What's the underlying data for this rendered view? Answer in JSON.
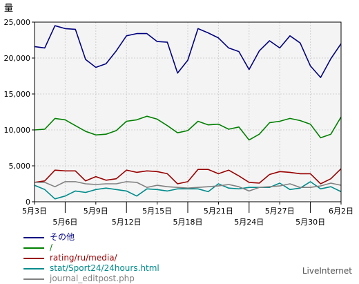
{
  "chart_data": {
    "type": "line",
    "ylabel": "量",
    "ylim": [
      0,
      25000
    ],
    "yticks": [
      0,
      5000,
      10000,
      15000,
      20000,
      25000
    ],
    "ytick_labels": [
      "0",
      "5,000",
      "10,000",
      "15,000",
      "20,000",
      "25,000"
    ],
    "x_count": 31,
    "xticks": [
      {
        "index": 0,
        "label": "5月3日",
        "row": 0
      },
      {
        "index": 3,
        "label": "5月6日",
        "row": 1
      },
      {
        "index": 6,
        "label": "5月9日",
        "row": 0
      },
      {
        "index": 9,
        "label": "5月12日",
        "row": 1
      },
      {
        "index": 12,
        "label": "5月15日",
        "row": 0
      },
      {
        "index": 15,
        "label": "5月18日",
        "row": 1
      },
      {
        "index": 18,
        "label": "5月21日",
        "row": 0
      },
      {
        "index": 21,
        "label": "5月24日",
        "row": 1
      },
      {
        "index": 24,
        "label": "5月27日",
        "row": 0
      },
      {
        "index": 27,
        "label": "5月30日",
        "row": 1
      },
      {
        "index": 30,
        "label": "6月2日",
        "row": 0
      }
    ],
    "grid": true,
    "legend_position": "bottom-left",
    "series": [
      {
        "name": "その他",
        "color": "#000080",
        "values": [
          21600,
          21400,
          24500,
          24100,
          24000,
          19800,
          18700,
          19200,
          21000,
          23100,
          23400,
          23400,
          22300,
          22200,
          17900,
          19700,
          24100,
          23500,
          22800,
          21400,
          20900,
          18400,
          21000,
          22400,
          21400,
          23100,
          22100,
          18900,
          17300,
          19900,
          22000
        ]
      },
      {
        "name": "/",
        "color": "#008000",
        "values": [
          10000,
          10100,
          11600,
          11400,
          10600,
          9800,
          9300,
          9400,
          9900,
          11200,
          11400,
          11900,
          11500,
          10600,
          9600,
          9900,
          11200,
          10700,
          10800,
          10100,
          10400,
          8600,
          9400,
          11000,
          11200,
          11600,
          11300,
          10800,
          8900,
          9400,
          11800
        ]
      },
      {
        "name": "rating/ru/media/",
        "color": "#990000",
        "values": [
          2700,
          2900,
          4400,
          4300,
          4300,
          2900,
          3500,
          3000,
          3200,
          4400,
          4100,
          4300,
          4200,
          3900,
          2500,
          2800,
          4500,
          4500,
          3900,
          4400,
          3600,
          2700,
          2600,
          3800,
          4200,
          4100,
          3900,
          3900,
          2500,
          3200,
          4600
        ]
      },
      {
        "name": "stat/Sport24/24hours.html",
        "color": "#008b8b",
        "values": [
          2300,
          1700,
          400,
          800,
          1500,
          1300,
          1700,
          1900,
          1700,
          1500,
          800,
          1800,
          1700,
          1500,
          1800,
          1800,
          1800,
          1400,
          2500,
          1900,
          1800,
          2000,
          2000,
          2000,
          2600,
          1700,
          1900,
          2800,
          1800,
          2100,
          1400
        ]
      },
      {
        "name": "journal_editpost.php",
        "color": "#808080",
        "values": [
          2700,
          2700,
          2100,
          2800,
          2800,
          2500,
          2400,
          2500,
          2500,
          2800,
          2700,
          2000,
          2300,
          2100,
          2000,
          1900,
          2000,
          2100,
          2200,
          2400,
          2100,
          1500,
          2000,
          2100,
          2200,
          2500,
          2000,
          2000,
          2200,
          2600,
          2300
        ]
      }
    ]
  },
  "brand": "LiveInternet"
}
